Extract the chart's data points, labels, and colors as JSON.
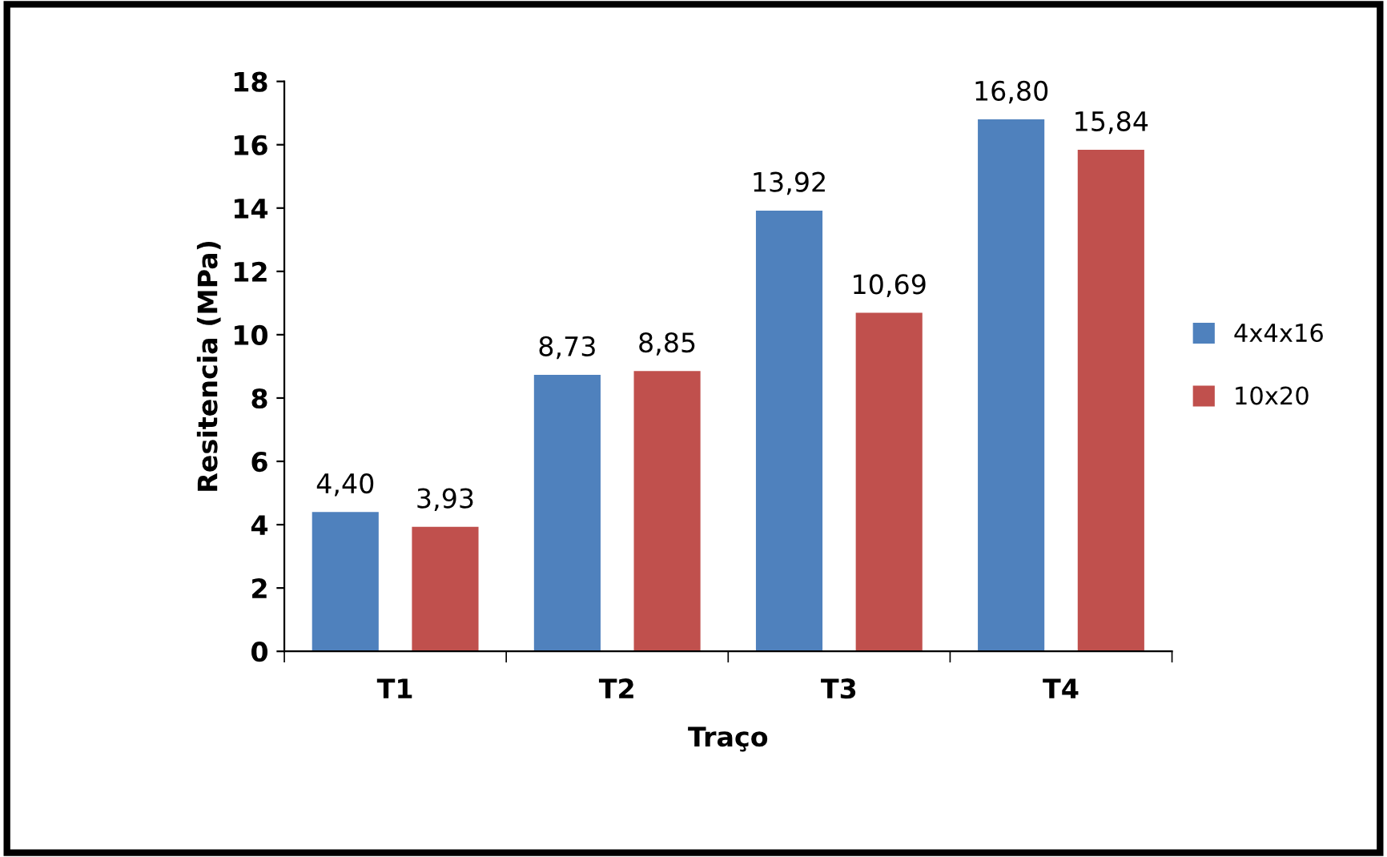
{
  "chart_data": {
    "type": "bar",
    "xlabel": "Traço",
    "ylabel": "Resitencia (MPa)",
    "categories": [
      "T1",
      "T2",
      "T3",
      "T4"
    ],
    "series": [
      {
        "name": "4x4x16",
        "color": "#4f81bd",
        "values": [
          4.4,
          8.73,
          13.92,
          16.8
        ],
        "value_labels": [
          "4,40",
          "8,73",
          "13,92",
          "16,80"
        ]
      },
      {
        "name": "10x20",
        "color": "#c0504d",
        "values": [
          3.93,
          8.85,
          10.69,
          15.84
        ],
        "value_labels": [
          "3,93",
          "8,85",
          "10,69",
          "15,84"
        ]
      }
    ],
    "ylim": [
      0,
      18
    ],
    "yticks": [
      0,
      2,
      4,
      6,
      8,
      10,
      12,
      14,
      16,
      18
    ],
    "grid": false,
    "legend": "right"
  }
}
